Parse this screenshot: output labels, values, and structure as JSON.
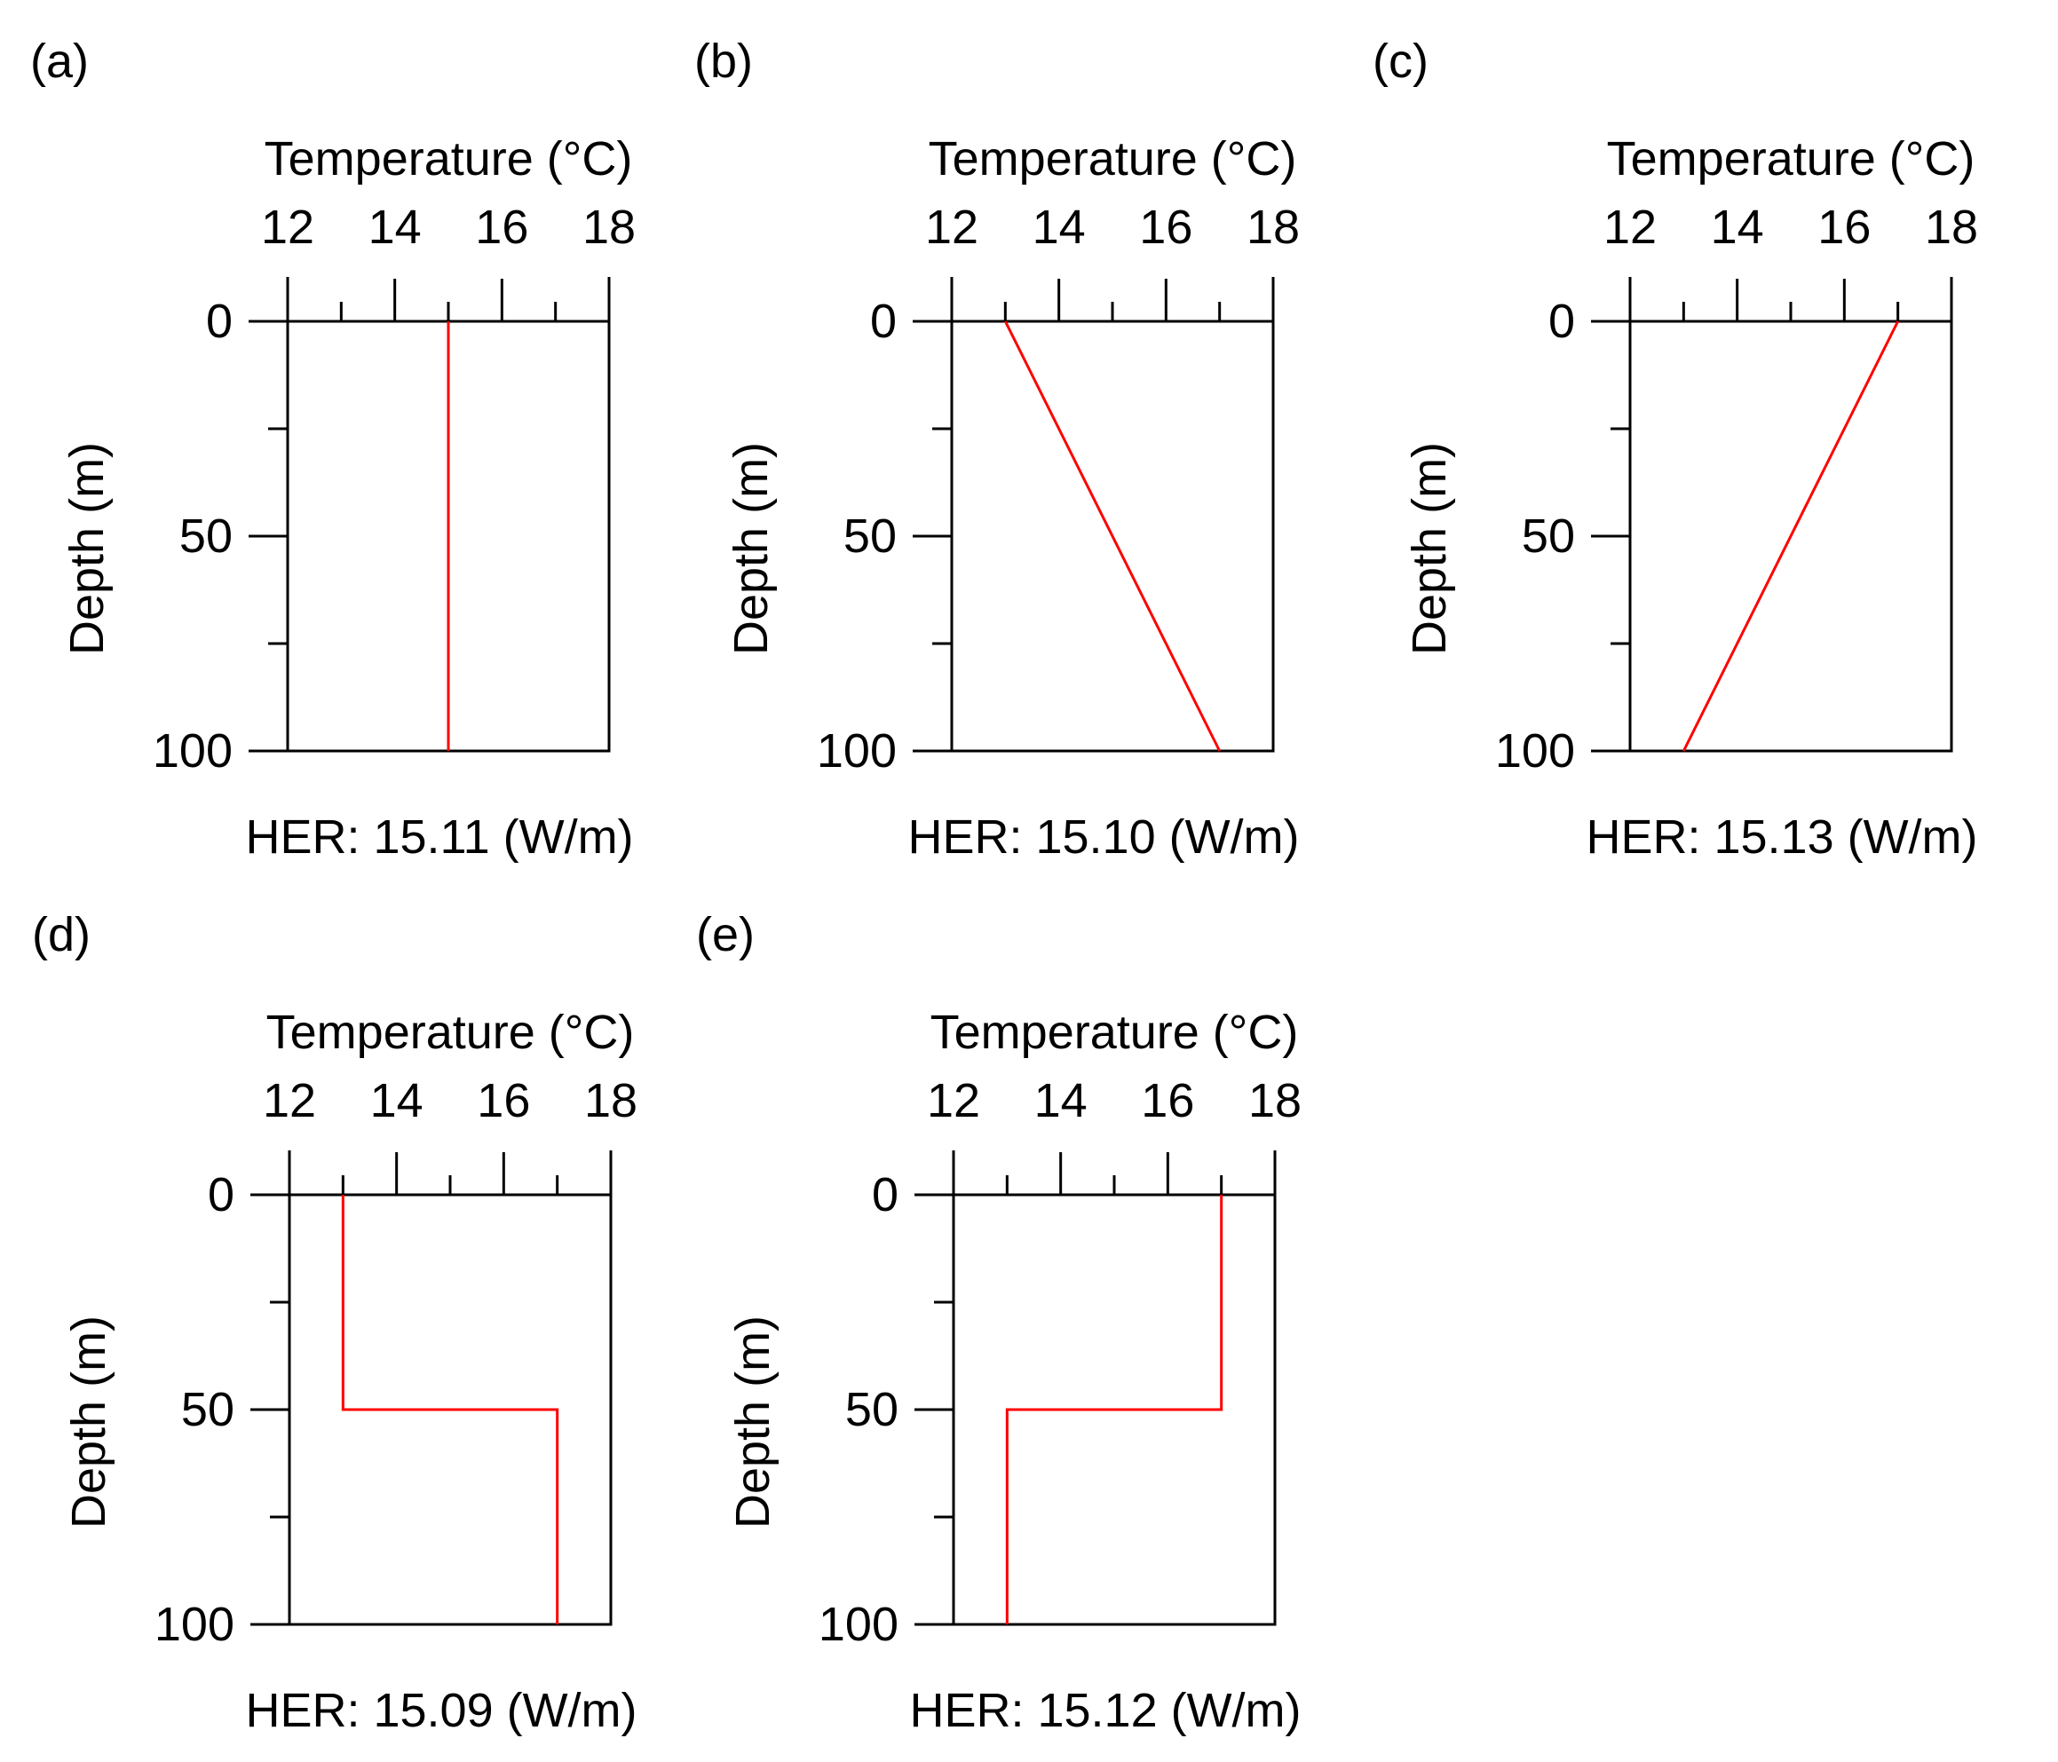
{
  "figure": {
    "x_axis_title": "Temperature (°C)",
    "y_axis_title": "Depth (m)",
    "series_color": "#ff0000",
    "axis_color": "#000000"
  },
  "chart_data": [
    {
      "type": "line",
      "panel": "(a)",
      "xlabel": "Temperature (°C)",
      "ylabel": "Depth (m)",
      "xlim": [
        12,
        18
      ],
      "ylim": [
        0,
        100
      ],
      "x_ticks": [
        12,
        14,
        16,
        18
      ],
      "y_ticks": [
        0,
        50,
        100
      ],
      "y_inverted": true,
      "x_axis_position": "top",
      "series": [
        {
          "name": "temperature-profile",
          "temperature": [
            15,
            15
          ],
          "depth": [
            0,
            100
          ]
        }
      ],
      "her_label": "HER:  15.11 (W/m)"
    },
    {
      "type": "line",
      "panel": "(b)",
      "xlabel": "Temperature (°C)",
      "ylabel": "Depth (m)",
      "xlim": [
        12,
        18
      ],
      "ylim": [
        0,
        100
      ],
      "x_ticks": [
        12,
        14,
        16,
        18
      ],
      "y_ticks": [
        0,
        50,
        100
      ],
      "y_inverted": true,
      "x_axis_position": "top",
      "series": [
        {
          "name": "temperature-profile",
          "temperature": [
            13,
            17
          ],
          "depth": [
            0,
            100
          ]
        }
      ],
      "her_label": "HER: 15.10 (W/m)"
    },
    {
      "type": "line",
      "panel": "(c)",
      "xlabel": "Temperature (°C)",
      "ylabel": "Depth (m)",
      "xlim": [
        12,
        18
      ],
      "ylim": [
        0,
        100
      ],
      "x_ticks": [
        12,
        14,
        16,
        18
      ],
      "y_ticks": [
        0,
        50,
        100
      ],
      "y_inverted": true,
      "x_axis_position": "top",
      "series": [
        {
          "name": "temperature-profile",
          "temperature": [
            17,
            13
          ],
          "depth": [
            0,
            100
          ]
        }
      ],
      "her_label": "HER:  15.13 (W/m)"
    },
    {
      "type": "line",
      "panel": "(d)",
      "xlabel": "Temperature (°C)",
      "ylabel": "Depth (m)",
      "xlim": [
        12,
        18
      ],
      "ylim": [
        0,
        100
      ],
      "x_ticks": [
        12,
        14,
        16,
        18
      ],
      "y_ticks": [
        0,
        50,
        100
      ],
      "y_inverted": true,
      "x_axis_position": "top",
      "series": [
        {
          "name": "temperature-profile",
          "temperature": [
            13,
            13,
            17,
            17
          ],
          "depth": [
            0,
            50,
            50,
            100
          ]
        }
      ],
      "her_label": "HER:  15.09 (W/m)"
    },
    {
      "type": "line",
      "panel": "(e)",
      "xlabel": "Temperature (°C)",
      "ylabel": "Depth (m)",
      "xlim": [
        12,
        18
      ],
      "ylim": [
        0,
        100
      ],
      "x_ticks": [
        12,
        14,
        16,
        18
      ],
      "y_ticks": [
        0,
        50,
        100
      ],
      "y_inverted": true,
      "x_axis_position": "top",
      "series": [
        {
          "name": "temperature-profile",
          "temperature": [
            17,
            17,
            13,
            13
          ],
          "depth": [
            0,
            50,
            50,
            100
          ]
        }
      ],
      "her_label": "HER:  15.12 (W/m)"
    }
  ]
}
